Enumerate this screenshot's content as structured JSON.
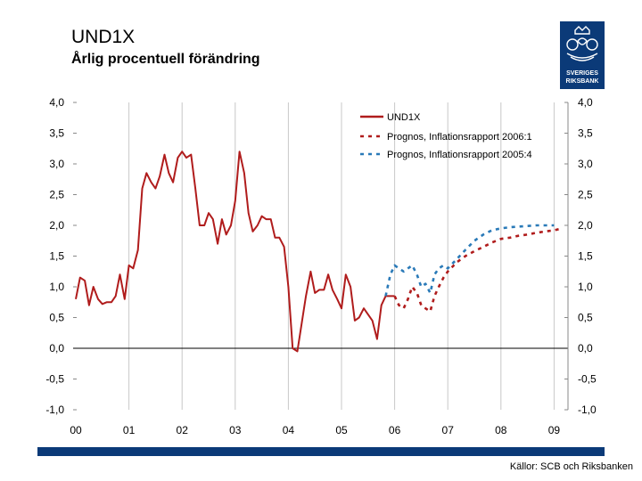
{
  "header": {
    "title": "UND1X",
    "subtitle": "Årlig procentuell förändring"
  },
  "logo": {
    "line1": "SVERIGES",
    "line2": "RIKSBANK"
  },
  "footer": {
    "source": "Källor: SCB och Riksbanken"
  },
  "colors": {
    "actual": "#b01c1c",
    "forecast_2006": "#b01c1c",
    "forecast_2005": "#2a7ab8",
    "brand": "#0b3a78"
  },
  "chart_data": {
    "type": "line",
    "title": "UND1X",
    "ylabel": "Årlig procentuell förändring",
    "ylim": [
      -1.0,
      4.0
    ],
    "xlim": [
      2000,
      2009.2
    ],
    "y_ticks": [
      4.0,
      3.5,
      3.0,
      2.5,
      2.0,
      1.5,
      1.0,
      0.5,
      0.0,
      -0.5,
      -1.0
    ],
    "y_tick_labels": [
      "4,0",
      "3,5",
      "3,0",
      "2,5",
      "2,0",
      "1,5",
      "1,0",
      "0,5",
      "0,0",
      "-0,5",
      "-1,0"
    ],
    "x_ticks": [
      2000,
      2001,
      2002,
      2003,
      2004,
      2005,
      2006,
      2007,
      2008,
      2009
    ],
    "x_tick_labels": [
      "00",
      "01",
      "02",
      "03",
      "04",
      "05",
      "06",
      "07",
      "08",
      "09"
    ],
    "legend": [
      "UND1X",
      "Prognos, Inflationsrapport 2006:1",
      "Prognos, Inflationsrapport 2005:4"
    ],
    "series": [
      {
        "name": "UND1X",
        "style": "solid",
        "x": [
          2000.0,
          2000.08,
          2000.17,
          2000.25,
          2000.33,
          2000.42,
          2000.5,
          2000.58,
          2000.67,
          2000.75,
          2000.83,
          2000.92,
          2001.0,
          2001.08,
          2001.17,
          2001.25,
          2001.33,
          2001.42,
          2001.5,
          2001.58,
          2001.67,
          2001.75,
          2001.83,
          2001.92,
          2002.0,
          2002.08,
          2002.17,
          2002.25,
          2002.33,
          2002.42,
          2002.5,
          2002.58,
          2002.67,
          2002.75,
          2002.83,
          2002.92,
          2003.0,
          2003.08,
          2003.17,
          2003.25,
          2003.33,
          2003.42,
          2003.5,
          2003.58,
          2003.67,
          2003.75,
          2003.83,
          2003.92,
          2004.0,
          2004.08,
          2004.17,
          2004.25,
          2004.33,
          2004.42,
          2004.5,
          2004.58,
          2004.67,
          2004.75,
          2004.83,
          2004.92,
          2005.0,
          2005.08,
          2005.17,
          2005.25,
          2005.33,
          2005.42,
          2005.5,
          2005.58,
          2005.67,
          2005.75,
          2005.83,
          2005.92,
          2006.0
        ],
        "values": [
          0.8,
          1.15,
          1.1,
          0.7,
          1.0,
          0.8,
          0.72,
          0.75,
          0.75,
          0.85,
          1.2,
          0.8,
          1.35,
          1.3,
          1.6,
          2.6,
          2.85,
          2.7,
          2.6,
          2.8,
          3.15,
          2.85,
          2.7,
          3.1,
          3.2,
          3.1,
          3.15,
          2.6,
          2.0,
          2.0,
          2.2,
          2.1,
          1.7,
          2.1,
          1.85,
          2.0,
          2.4,
          3.2,
          2.85,
          2.2,
          1.9,
          2.0,
          2.15,
          2.1,
          2.1,
          1.8,
          1.8,
          1.65,
          1.0,
          0.0,
          -0.05,
          0.4,
          0.85,
          1.25,
          0.9,
          0.95,
          0.95,
          1.2,
          0.95,
          0.8,
          0.65,
          1.2,
          1.0,
          0.45,
          0.5,
          0.65,
          0.55,
          0.45,
          0.15,
          0.7,
          0.85,
          0.85,
          0.85
        ]
      },
      {
        "name": "Prognos, Inflationsrapport 2006:1",
        "style": "dashed",
        "x": [
          2006.0,
          2006.08,
          2006.17,
          2006.25,
          2006.33,
          2006.42,
          2006.5,
          2006.58,
          2006.67,
          2006.75,
          2006.83,
          2006.92,
          2007.0,
          2007.17,
          2007.33,
          2007.5,
          2007.67,
          2007.83,
          2008.0,
          2008.17,
          2008.33,
          2008.5,
          2008.67,
          2008.83,
          2009.0,
          2009.1
        ],
        "values": [
          0.85,
          0.7,
          0.65,
          0.8,
          1.0,
          0.9,
          0.7,
          0.65,
          0.6,
          0.85,
          1.0,
          1.15,
          1.25,
          1.4,
          1.5,
          1.58,
          1.65,
          1.72,
          1.78,
          1.8,
          1.83,
          1.85,
          1.88,
          1.9,
          1.92,
          1.94
        ]
      },
      {
        "name": "Prognos, Inflationsrapport 2005:4",
        "style": "dashed",
        "x": [
          2005.83,
          2005.92,
          2006.0,
          2006.08,
          2006.17,
          2006.25,
          2006.33,
          2006.42,
          2006.5,
          2006.58,
          2006.67,
          2006.75,
          2006.83,
          2006.92,
          2007.0,
          2007.17,
          2007.33,
          2007.5,
          2007.67,
          2007.83,
          2008.0,
          2008.17,
          2008.33,
          2008.5,
          2008.67,
          2008.83,
          2009.0
        ],
        "values": [
          0.85,
          1.2,
          1.35,
          1.3,
          1.25,
          1.3,
          1.35,
          1.2,
          1.0,
          1.05,
          0.9,
          1.2,
          1.3,
          1.35,
          1.3,
          1.45,
          1.6,
          1.75,
          1.85,
          1.92,
          1.95,
          1.97,
          1.98,
          1.99,
          2.0,
          2.0,
          2.0
        ]
      }
    ]
  }
}
